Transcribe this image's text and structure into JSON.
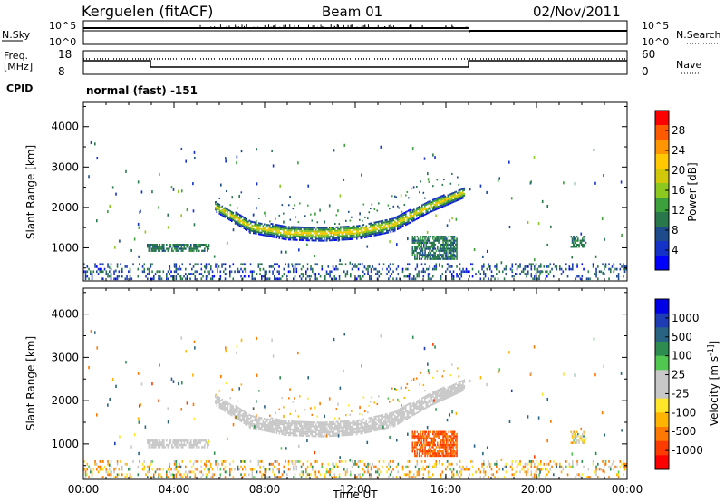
{
  "header": {
    "station": "Kerguelen (fitACF)",
    "beam": "Beam 01",
    "date": "02/Nov/2011"
  },
  "panels": {
    "nsky_label": "N.Sky",
    "nsky_ticks": [
      "10^5",
      "10^0"
    ],
    "nsearch_label": "N.Search",
    "nsearch_ticks": [
      "10^5",
      "10^0"
    ],
    "freq_label": "Freq.",
    "freq_unit": "[MHz]",
    "freq_ticks": [
      "18",
      "8"
    ],
    "nave_label": "Nave",
    "nave_ticks": [
      "60",
      "0"
    ],
    "cpid_label": "CPID",
    "cpid_value": "normal (fast) -151"
  },
  "chart_data": [
    {
      "type": "heatmap",
      "name": "power",
      "xlabel": "",
      "ylabel": "Slant Range [km]",
      "x_ticks": [
        "00:00",
        "04:00",
        "08:00",
        "12:00",
        "16:00",
        "20:00",
        "00:00"
      ],
      "y_ticks": [
        1000,
        2000,
        3000,
        4000
      ],
      "xlim_hours": [
        0,
        24
      ],
      "ylim_km": [
        180,
        4600
      ],
      "colorbar": {
        "label": "Power [dB]",
        "ticks": [
          "28",
          "24",
          "20",
          "16",
          "12",
          "8",
          "4"
        ],
        "colors": [
          "#ff0000",
          "#ff5a00",
          "#ff9600",
          "#ffc800",
          "#d2c80a",
          "#8cc81e",
          "#3ca03c",
          "#28784b",
          "#1e4b8c",
          "#1432c8",
          "#0000ff"
        ]
      },
      "features": [
        {
          "desc": "main arc",
          "start_hour": 5.8,
          "end_hour": 16.8,
          "center_range_km": [
            2000,
            1500,
            1350,
            1330,
            1380,
            1550,
            2000,
            2350
          ],
          "peak_power_db": 20
        },
        {
          "desc": "low-range band",
          "start_hour": 0,
          "end_hour": 24,
          "range_km": [
            200,
            600
          ],
          "power_db": 6
        },
        {
          "desc": "near-range echo",
          "start_hour": 2.8,
          "end_hour": 5.5,
          "range_km": [
            900,
            1100
          ],
          "power_db": 10
        },
        {
          "desc": "lower patch",
          "start_hour": 14.5,
          "end_hour": 16.5,
          "range_km": [
            700,
            1300
          ],
          "power_db": 10
        },
        {
          "desc": "late echo",
          "start_hour": 21.5,
          "end_hour": 22.2,
          "range_km": [
            1000,
            1300
          ],
          "power_db": 10
        }
      ]
    },
    {
      "type": "heatmap",
      "name": "velocity",
      "xlabel": "Time UT",
      "ylabel": "Slant Range [km]",
      "x_ticks": [
        "00:00",
        "04:00",
        "08:00",
        "12:00",
        "16:00",
        "20:00",
        "00:00"
      ],
      "y_ticks": [
        1000,
        2000,
        3000,
        4000
      ],
      "xlim_hours": [
        0,
        24
      ],
      "ylim_km": [
        180,
        4600
      ],
      "colorbar": {
        "label": "Velocity [m s^-1]",
        "ticks": [
          "1000",
          "500",
          "100",
          "25",
          "-25",
          "-100",
          "-500",
          "-1000"
        ],
        "colors": [
          "#0000e6",
          "#1e3cb4",
          "#286482",
          "#2d8c50",
          "#50c850",
          "#c8c8c8",
          "#c8c8c8",
          "#ffe628",
          "#ffb400",
          "#ff7800",
          "#ff3c00",
          "#ff0000"
        ]
      },
      "features": [
        {
          "desc": "ground scatter arc",
          "start_hour": 5.8,
          "end_hour": 16.8,
          "velocity_ms": 0
        },
        {
          "desc": "ionospheric patch",
          "start_hour": 14.5,
          "end_hour": 16.5,
          "range_km": [
            700,
            1300
          ],
          "velocity_ms": -300
        }
      ]
    }
  ]
}
